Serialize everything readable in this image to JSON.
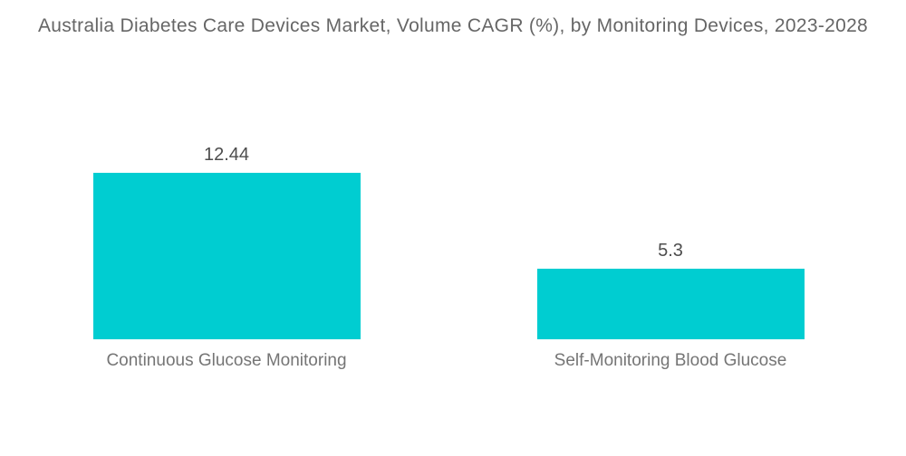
{
  "chart_data": {
    "type": "bar",
    "title": "Australia Diabetes Care Devices Market, Volume CAGR (%), by Monitoring Devices, 2023-2028",
    "categories": [
      "Continuous Glucose Monitoring",
      "Self-Monitoring Blood Glucose"
    ],
    "values": [
      12.44,
      5.3
    ],
    "value_labels": [
      "12.44",
      "5.3"
    ],
    "xlabel": "",
    "ylabel": "",
    "axes": "hidden",
    "grid": false,
    "legend": "none",
    "bar_color": "#00CDD1"
  },
  "colors": {
    "background": "#FFFFFF",
    "bar": "#00CDD1",
    "title_text": "#666666",
    "value_text": "#4D4D4D",
    "category_text": "#757575"
  }
}
